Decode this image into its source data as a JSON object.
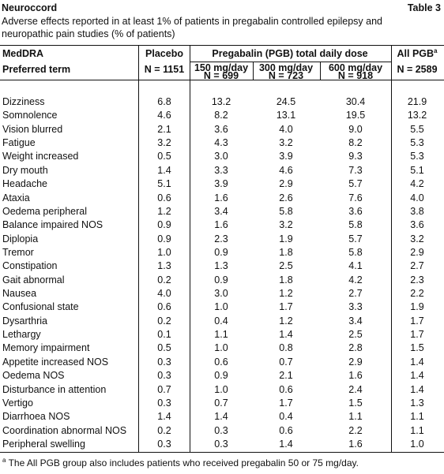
{
  "header": {
    "title": "Neuroccord",
    "table_label": "Table 3",
    "caption": [
      "Adverse effects reported in at least 1% of patients in pregabalin controlled epilepsy and",
      "neuropathic pain studies (% of patients)"
    ]
  },
  "table": {
    "columns": {
      "term": [
        "MedDRA",
        "Preferred term"
      ],
      "placebo": [
        "Placebo",
        "N = 1151"
      ],
      "pregabalin_group": "Pregabalin (PGB) total daily dose",
      "doses": [
        [
          "150 mg/day",
          "N = 699"
        ],
        [
          "300 mg/day",
          "N = 723"
        ],
        [
          "600 mg/day",
          "N = 918"
        ]
      ],
      "all_pgb": [
        "All PGB",
        "N = 2589"
      ],
      "all_pgb_marker": "a"
    },
    "rows": [
      [
        "Dizziness",
        "6.8",
        "13.2",
        "24.5",
        "30.4",
        "21.9"
      ],
      [
        "Somnolence",
        "4.6",
        "8.2",
        "13.1",
        "19.5",
        "13.2"
      ],
      [
        "Vision blurred",
        "2.1",
        "3.6",
        "4.0",
        "9.0",
        "5.5"
      ],
      [
        "Fatigue",
        "3.2",
        "4.3",
        "3.2",
        "8.2",
        "5.3"
      ],
      [
        "Weight increased",
        "0.5",
        "3.0",
        "3.9",
        "9.3",
        "5.3"
      ],
      [
        "Dry mouth",
        "1.4",
        "3.3",
        "4.6",
        "7.3",
        "5.1"
      ],
      [
        "Headache",
        "5.1",
        "3.9",
        "2.9",
        "5.7",
        "4.2"
      ],
      [
        "Ataxia",
        "0.6",
        "1.6",
        "2.6",
        "7.6",
        "4.0"
      ],
      [
        "Oedema peripheral",
        "1.2",
        "3.4",
        "5.8",
        "3.6",
        "3.8"
      ],
      [
        "Balance impaired NOS",
        "0.9",
        "1.6",
        "3.2",
        "5.8",
        "3.6"
      ],
      [
        "Diplopia",
        "0.9",
        "2.3",
        "1.9",
        "5.7",
        "3.2"
      ],
      [
        "Tremor",
        "1.0",
        "0.9",
        "1.8",
        "5.8",
        "2.9"
      ],
      [
        "Constipation",
        "1.3",
        "1.3",
        "2.5",
        "4.1",
        "2.7"
      ],
      [
        "Gait abnormal",
        "0.2",
        "0.9",
        "1.8",
        "4.2",
        "2.3"
      ],
      [
        "Nausea",
        "4.0",
        "3.0",
        "1.2",
        "2.7",
        "2.2"
      ],
      [
        "Confusional state",
        "0.6",
        "1.0",
        "1.7",
        "3.3",
        "1.9"
      ],
      [
        "Dysarthria",
        "0.2",
        "0.4",
        "1.2",
        "3.4",
        "1.7"
      ],
      [
        "Lethargy",
        "0.1",
        "1.1",
        "1.4",
        "2.5",
        "1.7"
      ],
      [
        "Memory impairment",
        "0.5",
        "1.0",
        "0.8",
        "2.8",
        "1.5"
      ],
      [
        "Appetite increased NOS",
        "0.3",
        "0.6",
        "0.7",
        "2.9",
        "1.4"
      ],
      [
        "Oedema NOS",
        "0.3",
        "0.9",
        "2.1",
        "1.6",
        "1.4"
      ],
      [
        "Disturbance in attention",
        "0.7",
        "1.0",
        "0.6",
        "2.4",
        "1.4"
      ],
      [
        "Vertigo",
        "0.3",
        "0.7",
        "1.7",
        "1.5",
        "1.3"
      ],
      [
        "Diarrhoea NOS",
        "1.4",
        "1.4",
        "0.4",
        "1.1",
        "1.1"
      ],
      [
        "Coordination abnormal NOS",
        "0.2",
        "0.3",
        "0.6",
        "2.2",
        "1.1"
      ],
      [
        "Peripheral swelling",
        "0.3",
        "0.3",
        "1.4",
        "1.6",
        "1.0"
      ]
    ]
  },
  "footnote": {
    "marker": "a",
    "text": "The All PGB group also includes patients who received pregabalin 50 or 75 mg/day."
  }
}
